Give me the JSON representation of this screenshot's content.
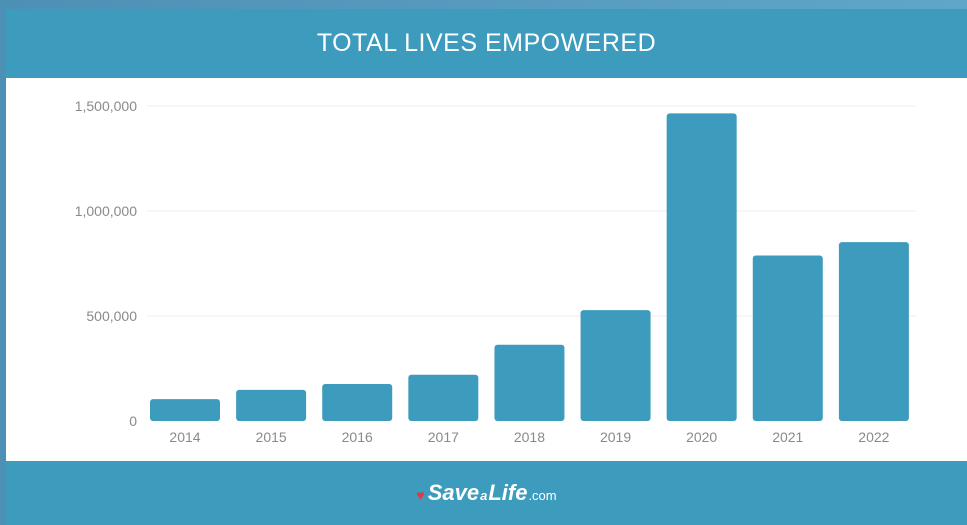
{
  "header": {
    "title": "TOTAL LIVES EMPOWERED"
  },
  "footer": {
    "logo": {
      "save": "Save",
      "a": "a",
      "life": "Life",
      "com": ".com"
    }
  },
  "colors": {
    "bar": "#3d9bbd",
    "header": "#3d9bbd",
    "heart": "#e03a3e"
  },
  "chart_data": {
    "type": "bar",
    "title": "TOTAL LIVES EMPOWERED",
    "xlabel": "",
    "ylabel": "",
    "categories": [
      "2014",
      "2015",
      "2016",
      "2017",
      "2018",
      "2019",
      "2020",
      "2021",
      "2022"
    ],
    "values": [
      104000,
      148000,
      176000,
      220000,
      363000,
      528000,
      1465000,
      788000,
      852000
    ],
    "ylim": [
      0,
      1500000
    ],
    "yticks": [
      0,
      500000,
      1000000,
      1500000
    ],
    "ytick_labels": [
      "0",
      "500,000",
      "1,000,000",
      "1,500,000"
    ],
    "grid": true
  }
}
